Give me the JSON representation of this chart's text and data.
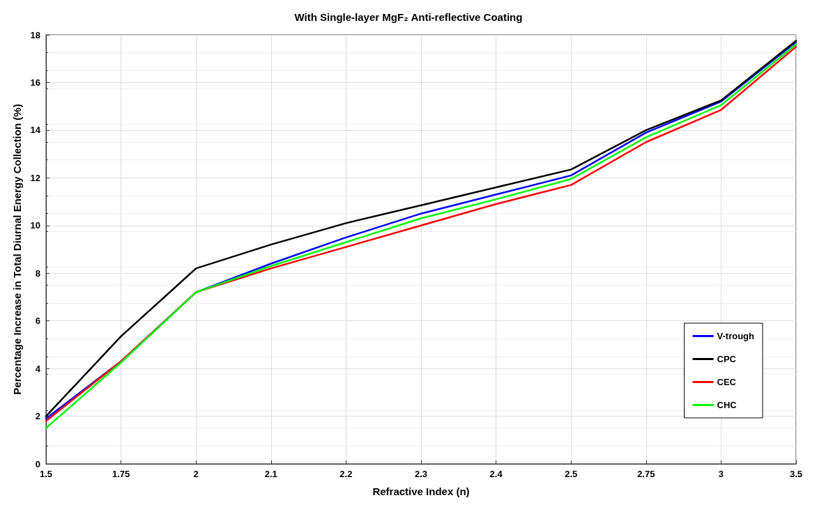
{
  "chart_data": {
    "type": "line",
    "title": "With Single-layer MgF₂ Anti-reflective Coating",
    "xlabel": "Refractive Index (n)",
    "ylabel": "Percentage Increase in Total Diurnal Energy Collection (%)",
    "categories": [
      "1.5",
      "1.75",
      "2",
      "2.1",
      "2.2",
      "2.3",
      "2.4",
      "2.5",
      "2.75",
      "3",
      "3.5"
    ],
    "ylim": [
      0,
      18
    ],
    "yticks": [
      0,
      2,
      4,
      6,
      8,
      10,
      12,
      14,
      16,
      18
    ],
    "grid": true,
    "legend": "bottom right",
    "marker": "none",
    "line_style": "solid",
    "series": [
      {
        "name": "V-trough",
        "color": "#0000ff",
        "values": [
          1.9,
          4.3,
          7.2,
          8.4,
          9.5,
          10.5,
          11.3,
          12.1,
          13.9,
          15.2,
          17.7
        ]
      },
      {
        "name": "CPC",
        "color": "#000000",
        "values": [
          2.0,
          5.35,
          8.2,
          9.2,
          10.1,
          10.85,
          11.6,
          12.35,
          14.0,
          15.25,
          17.75
        ]
      },
      {
        "name": "CEC",
        "color": "#ff0000",
        "values": [
          1.8,
          4.3,
          7.2,
          8.2,
          9.1,
          10.0,
          10.9,
          11.7,
          13.5,
          14.85,
          17.5
        ]
      },
      {
        "name": "CHC",
        "color": "#00ff00",
        "values": [
          1.5,
          4.25,
          7.2,
          8.3,
          9.3,
          10.3,
          11.1,
          11.95,
          13.7,
          15.05,
          17.6
        ]
      }
    ]
  }
}
